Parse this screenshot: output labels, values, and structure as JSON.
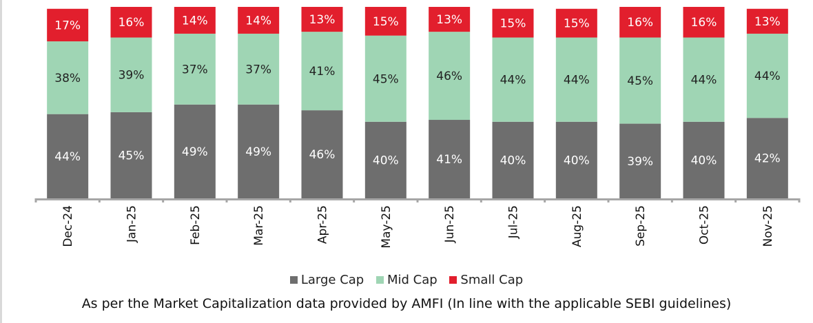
{
  "chart_data": {
    "type": "bar",
    "stacked": true,
    "categories": [
      "Dec-24",
      "Jan-25",
      "Feb-25",
      "Mar-25",
      "Apr-25",
      "May-25",
      "Jun-25",
      "Jul-25",
      "Aug-25",
      "Sep-25",
      "Oct-25",
      "Nov-25"
    ],
    "series": [
      {
        "name": "Large Cap",
        "color": "#6e6e6e",
        "values": [
          44,
          45,
          49,
          49,
          46,
          40,
          41,
          40,
          40,
          39,
          40,
          42
        ]
      },
      {
        "name": "Mid Cap",
        "color": "#9fd5b4",
        "values": [
          38,
          39,
          37,
          37,
          41,
          45,
          46,
          44,
          44,
          45,
          44,
          44
        ]
      },
      {
        "name": "Small Cap",
        "color": "#e21f2d",
        "values": [
          17,
          16,
          14,
          14,
          13,
          15,
          13,
          15,
          15,
          16,
          16,
          13
        ]
      }
    ],
    "value_suffix": "%",
    "legend_position": "bottom",
    "grid": false,
    "ylim": [
      0,
      100
    ]
  },
  "footnote": "As per the Market Capitalization data provided by AMFI (In line with the applicable SEBI guidelines)"
}
